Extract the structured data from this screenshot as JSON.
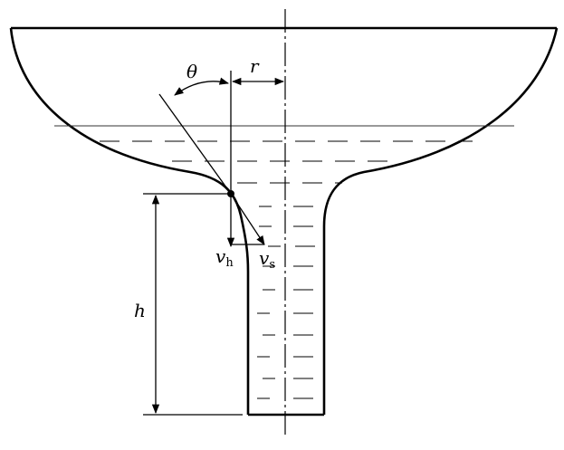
{
  "labels": {
    "theta": "θ",
    "r": "r",
    "h": "h",
    "v_h": {
      "main": "v",
      "sub": "h"
    },
    "v_s": {
      "main": "v",
      "sub": "s"
    }
  },
  "colors": {
    "ink": "#000000",
    "background": "#ffffff",
    "water_line": "#333333"
  }
}
